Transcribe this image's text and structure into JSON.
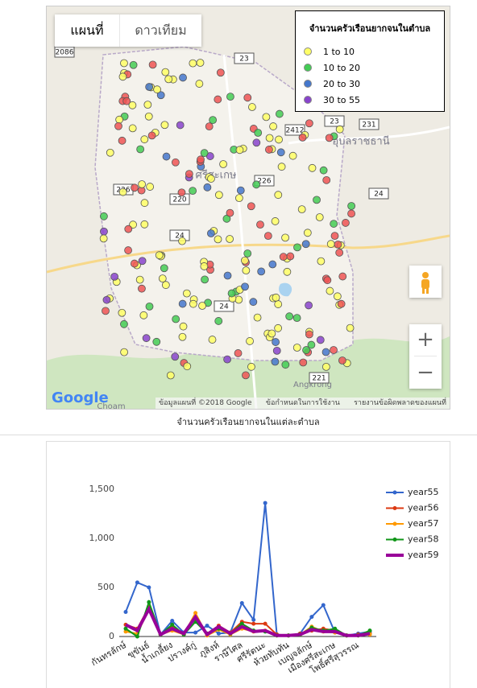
{
  "map": {
    "buttons": [
      "แผนที่",
      "ดาวเทียม"
    ],
    "legend": {
      "title": "จำนวนครัวเรือนยากจนในตำบล",
      "items": [
        {
          "label": "1 to 10",
          "color": "#ffff66"
        },
        {
          "label": "10 to 20",
          "color": "#44cc55"
        },
        {
          "label": "20 to 30",
          "color": "#4477cc"
        },
        {
          "label": "30 to 55",
          "color": "#8844cc"
        }
      ]
    },
    "places": [
      "อุบลราชธานี",
      "ศรีสะเกษ",
      "Angkrong",
      "Choam"
    ],
    "roads": [
      "2086",
      "23",
      "23",
      "231",
      "2412",
      "226",
      "220",
      "24",
      "24",
      "226",
      "24",
      "221"
    ],
    "footer": {
      "logo": "Google",
      "copyright": "ข้อมูลแผนที่ ©2018 Google",
      "terms": "ข้อกำหนดในการใช้งาน",
      "report": "รายงานข้อผิดพลาดของแผนที่"
    },
    "zoom_in": "+",
    "zoom_out": "−",
    "caption": "จำนวนครัวเรือนยากจนในแต่ละตำบล"
  },
  "chart_data": {
    "type": "line",
    "categories": [
      "กันทรลักษ์",
      null,
      "ขุขันธ์",
      null,
      "น้ำเกลี้ยง",
      null,
      "ปรางค์กู่",
      null,
      "ภูสิงห์",
      null,
      "ราษีไศล",
      null,
      "ศรีรัตนะ",
      null,
      "ห้วยทับทัน",
      null,
      "เบญจลักษ์",
      null,
      "เมืองศรีสะเกษ",
      null,
      "โพธิ์ศรีสุวรรณ",
      null
    ],
    "ylim": [
      0,
      1500
    ],
    "yticks": [
      0,
      500,
      {
        "value": 1000,
        "label": "1,000"
      },
      {
        "value": 1500,
        "label": "1,500"
      }
    ],
    "series": [
      {
        "name": "year55",
        "color": "#3366cc",
        "values": [
          250,
          550,
          500,
          20,
          160,
          40,
          40,
          110,
          30,
          40,
          340,
          170,
          1360,
          20,
          10,
          30,
          200,
          320,
          40,
          10,
          30,
          50
        ]
      },
      {
        "name": "year56",
        "color": "#dc3912",
        "values": [
          120,
          80,
          300,
          20,
          100,
          30,
          200,
          30,
          110,
          40,
          150,
          130,
          130,
          20,
          10,
          30,
          60,
          80,
          60,
          10,
          20,
          30
        ]
      },
      {
        "name": "year57",
        "color": "#ff9900",
        "values": [
          50,
          30,
          280,
          20,
          60,
          20,
          240,
          10,
          70,
          20,
          80,
          50,
          60,
          10,
          10,
          20,
          100,
          50,
          40,
          10,
          10,
          20
        ]
      },
      {
        "name": "year58",
        "color": "#109618",
        "values": [
          80,
          0,
          350,
          20,
          120,
          20,
          150,
          30,
          80,
          30,
          130,
          60,
          50,
          10,
          10,
          20,
          90,
          60,
          80,
          10,
          10,
          60
        ]
      },
      {
        "name": "year59",
        "color": "#990099",
        "values": [
          120,
          60,
          280,
          20,
          80,
          30,
          200,
          20,
          100,
          30,
          100,
          50,
          60,
          10,
          10,
          20,
          70,
          50,
          50,
          10,
          10,
          30
        ]
      }
    ],
    "legend": "right"
  }
}
